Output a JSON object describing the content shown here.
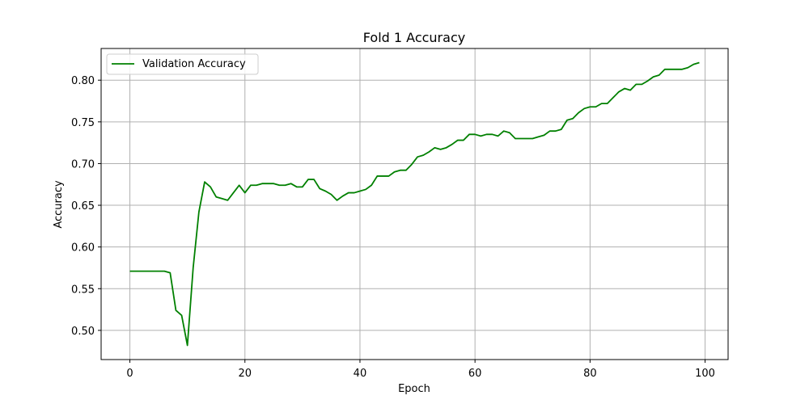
{
  "chart_data": {
    "type": "line",
    "title": "Fold 1 Accuracy",
    "xlabel": "Epoch",
    "ylabel": "Accuracy",
    "xlim": [
      -5,
      104
    ],
    "ylim": [
      0.465,
      0.838
    ],
    "xticks": [
      0,
      20,
      40,
      60,
      80,
      100
    ],
    "yticks": [
      0.5,
      0.55,
      0.6,
      0.65,
      0.7,
      0.75,
      0.8
    ],
    "ytick_labels": [
      "0.50",
      "0.55",
      "0.60",
      "0.65",
      "0.70",
      "0.75",
      "0.80"
    ],
    "grid": true,
    "legend": "top-left",
    "series": [
      {
        "name": "Validation Accuracy",
        "color": "#008000",
        "x": [
          0,
          1,
          2,
          3,
          4,
          5,
          6,
          7,
          8,
          9,
          10,
          11,
          12,
          13,
          14,
          15,
          16,
          17,
          18,
          19,
          20,
          21,
          22,
          23,
          24,
          25,
          26,
          27,
          28,
          29,
          30,
          31,
          32,
          33,
          34,
          35,
          36,
          37,
          38,
          39,
          40,
          41,
          42,
          43,
          44,
          45,
          46,
          47,
          48,
          49,
          50,
          51,
          52,
          53,
          54,
          55,
          56,
          57,
          58,
          59,
          60,
          61,
          62,
          63,
          64,
          65,
          66,
          67,
          68,
          69,
          70,
          71,
          72,
          73,
          74,
          75,
          76,
          77,
          78,
          79,
          80,
          81,
          82,
          83,
          84,
          85,
          86,
          87,
          88,
          89,
          90,
          91,
          92,
          93,
          94,
          95,
          96,
          97,
          98,
          99
        ],
        "values": [
          0.571,
          0.571,
          0.571,
          0.571,
          0.571,
          0.571,
          0.571,
          0.569,
          0.524,
          0.518,
          0.482,
          0.575,
          0.642,
          0.678,
          0.672,
          0.66,
          0.658,
          0.656,
          0.665,
          0.674,
          0.665,
          0.674,
          0.674,
          0.676,
          0.676,
          0.676,
          0.674,
          0.674,
          0.676,
          0.672,
          0.672,
          0.681,
          0.681,
          0.67,
          0.667,
          0.663,
          0.656,
          0.661,
          0.665,
          0.665,
          0.667,
          0.669,
          0.674,
          0.685,
          0.685,
          0.685,
          0.69,
          0.692,
          0.692,
          0.699,
          0.708,
          0.71,
          0.714,
          0.719,
          0.717,
          0.719,
          0.723,
          0.728,
          0.728,
          0.735,
          0.735,
          0.733,
          0.735,
          0.735,
          0.733,
          0.739,
          0.737,
          0.73,
          0.73,
          0.73,
          0.73,
          0.732,
          0.734,
          0.739,
          0.739,
          0.741,
          0.752,
          0.754,
          0.761,
          0.766,
          0.768,
          0.768,
          0.772,
          0.772,
          0.779,
          0.786,
          0.79,
          0.788,
          0.795,
          0.795,
          0.799,
          0.804,
          0.806,
          0.813,
          0.813,
          0.813,
          0.813,
          0.815,
          0.819,
          0.821
        ]
      }
    ]
  }
}
